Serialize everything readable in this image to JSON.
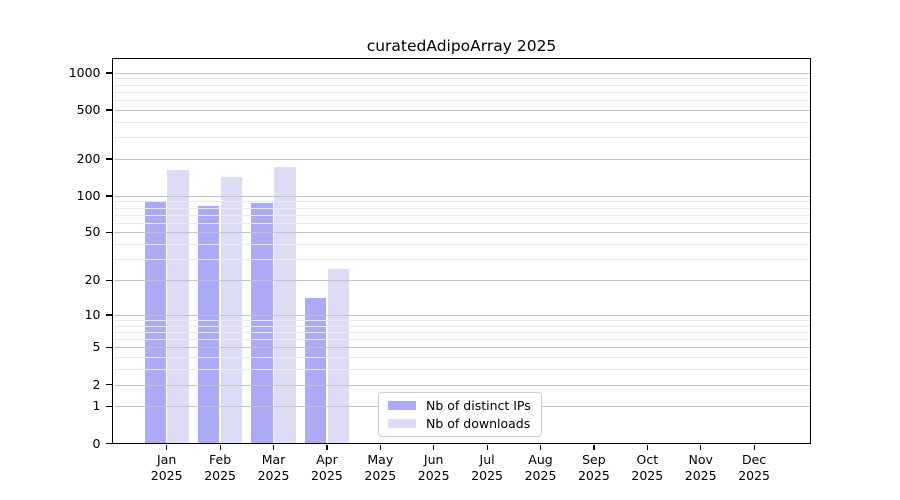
{
  "chart_data": {
    "type": "bar",
    "title": "curatedAdipoArray 2025",
    "xlabel": "",
    "ylabel": "",
    "yscale": "log1p",
    "ylim": [
      0,
      1280
    ],
    "yticks": [
      0,
      1,
      2,
      5,
      10,
      20,
      50,
      100,
      200,
      500,
      1000
    ],
    "minor_gridlines": [
      3,
      4,
      6,
      7,
      8,
      9,
      30,
      40,
      60,
      70,
      80,
      90,
      300,
      400,
      600,
      700,
      800,
      900
    ],
    "grid": true,
    "categories": [
      "Jan",
      "Feb",
      "Mar",
      "Apr",
      "May",
      "Jun",
      "Jul",
      "Aug",
      "Sep",
      "Oct",
      "Nov",
      "Dec"
    ],
    "year": "2025",
    "series": [
      {
        "name": "Nb of distinct IPs",
        "color": "#aaaaf7",
        "values": [
          90,
          82,
          87,
          14,
          0,
          0,
          0,
          0,
          0,
          0,
          0,
          0
        ]
      },
      {
        "name": "Nb of downloads",
        "color": "#dcdcf7",
        "values": [
          163,
          143,
          172,
          25,
          0,
          0,
          0,
          0,
          0,
          0,
          0,
          0
        ]
      }
    ],
    "legend": {
      "position": "inside-bottom-center-left",
      "items": [
        "Nb of distinct IPs",
        "Nb of downloads"
      ]
    }
  }
}
